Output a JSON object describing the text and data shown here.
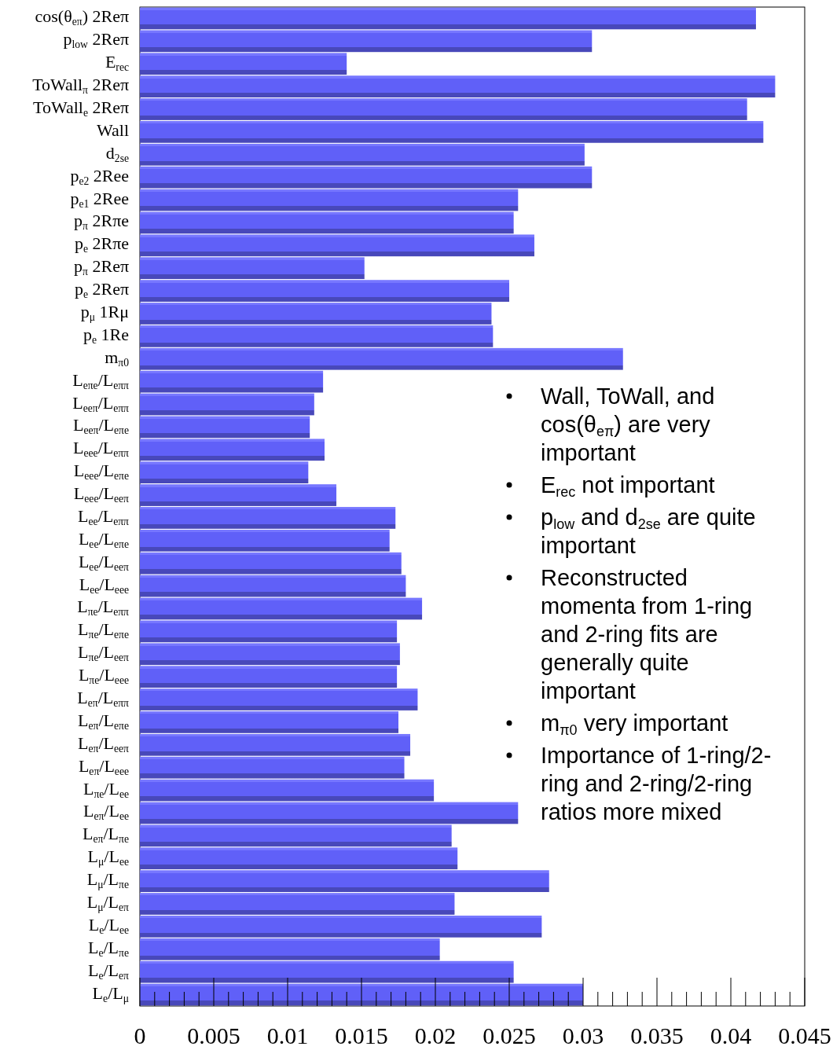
{
  "chart_data": {
    "type": "bar",
    "orientation": "horizontal",
    "categories": [
      "cos(θ$_{eπ}$) 2Reπ",
      "p$_{low}$ 2Reπ",
      "E$_{rec}$",
      "ToWall$_{π}$ 2Reπ",
      "ToWall$_{e}$ 2Reπ",
      "Wall",
      "d$_{2se}$",
      "p$_{e2}$ 2Ree",
      "p$_{e1}$ 2Ree",
      "p$_{π}$ 2Rπe",
      "p$_{e}$ 2Rπe",
      "p$_{π}$ 2Reπ",
      "p$_{e}$ 2Reπ",
      "p$_{μ}$ 1Rμ",
      "p$_{e}$ 1Re",
      "m$_{π0}$",
      "L$_{eπe}$/L$_{eππ}$",
      "L$_{eeπ}$/L$_{eππ}$",
      "L$_{eeπ}$/L$_{eπe}$",
      "L$_{eee}$/L$_{eππ}$",
      "L$_{eee}$/L$_{eπe}$",
      "L$_{eee}$/L$_{eeπ}$",
      "L$_{ee}$/L$_{eππ}$",
      "L$_{ee}$/L$_{eπe}$",
      "L$_{ee}$/L$_{eeπ}$",
      "L$_{ee}$/L$_{eee}$",
      "L$_{πe}$/L$_{eππ}$",
      "L$_{πe}$/L$_{eπe}$",
      "L$_{πe}$/L$_{eeπ}$",
      "L$_{πe}$/L$_{eee}$",
      "L$_{eπ}$/L$_{eππ}$",
      "L$_{eπ}$/L$_{eπe}$",
      "L$_{eπ}$/L$_{eeπ}$",
      "L$_{eπ}$/L$_{eee}$",
      "L$_{πe}$/L$_{ee}$",
      "L$_{eπ}$/L$_{ee}$",
      "L$_{eπ}$/L$_{πe}$",
      "L$_{μ}$/L$_{ee}$",
      "L$_{μ}$/L$_{πe}$",
      "L$_{μ}$/L$_{eπ}$",
      "L$_{e}$/L$_{ee}$",
      "L$_{e}$/L$_{πe}$",
      "L$_{e}$/L$_{eπ}$",
      "L$_{e}$/L$_{μ}$"
    ],
    "values": [
      0.0417,
      0.0306,
      0.014,
      0.043,
      0.0411,
      0.0422,
      0.0301,
      0.0306,
      0.0256,
      0.0253,
      0.0267,
      0.0152,
      0.025,
      0.0238,
      0.0239,
      0.0327,
      0.0124,
      0.0118,
      0.0115,
      0.0125,
      0.0114,
      0.0133,
      0.0173,
      0.0169,
      0.0177,
      0.018,
      0.0191,
      0.0174,
      0.0176,
      0.0174,
      0.0188,
      0.0175,
      0.0183,
      0.0179,
      0.0199,
      0.0256,
      0.0211,
      0.0215,
      0.0277,
      0.0213,
      0.0272,
      0.0203,
      0.0253,
      0.03
    ],
    "color": "#6060f8",
    "xlim": [
      0,
      0.045
    ],
    "xticks": [
      0,
      0.005,
      0.01,
      0.015,
      0.02,
      0.025,
      0.03,
      0.035,
      0.04,
      0.045
    ],
    "grid": false,
    "annotations": [
      "Wall, ToWall, and cos(θ$_{eπ}$) are very important",
      "E$_{rec}$ not important",
      "p$_{low}$ and d$_{2se}$ are quite important",
      "Reconstructed momenta from 1-ring and 2-ring fits are generally quite important",
      "m$_{π0}$ very important",
      "Importance of 1-ring/2-ring and 2-ring/2-ring ratios more mixed"
    ]
  }
}
